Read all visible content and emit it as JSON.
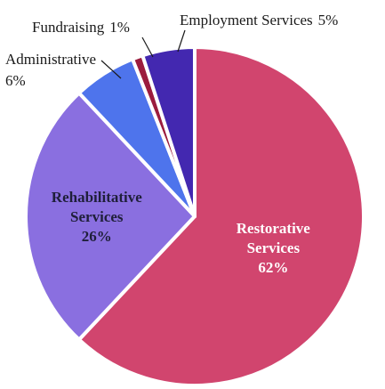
{
  "chart_data": {
    "type": "pie",
    "slices": [
      {
        "label": "Restorative Services",
        "value": 62,
        "percent_label": "62%",
        "color": "#d1456e",
        "label_color": "#ffffff",
        "label_lines": [
          "Restorative",
          "Services"
        ]
      },
      {
        "label": "Rehabilitative Services",
        "value": 26,
        "percent_label": "26%",
        "color": "#8a6fe0",
        "label_color": "#1f1f3a",
        "label_lines": [
          "Rehabilitative",
          "Services"
        ]
      },
      {
        "label": "Administrative",
        "value": 6,
        "percent_label": "6%",
        "color": "#4e74ec"
      },
      {
        "label": "Fundraising",
        "value": 1,
        "percent_label": "1%",
        "color": "#9b1c3e"
      },
      {
        "label": "Employment Services",
        "value": 5,
        "percent_label": "5%",
        "color": "#4328b0"
      }
    ],
    "outside_labels": {
      "administrative": {
        "name": "Administrative",
        "pct": "6%"
      },
      "fundraising": {
        "name": "Fundraising",
        "pct": "1%"
      },
      "employment": {
        "name": "Employment Services",
        "pct": "5%"
      }
    }
  }
}
